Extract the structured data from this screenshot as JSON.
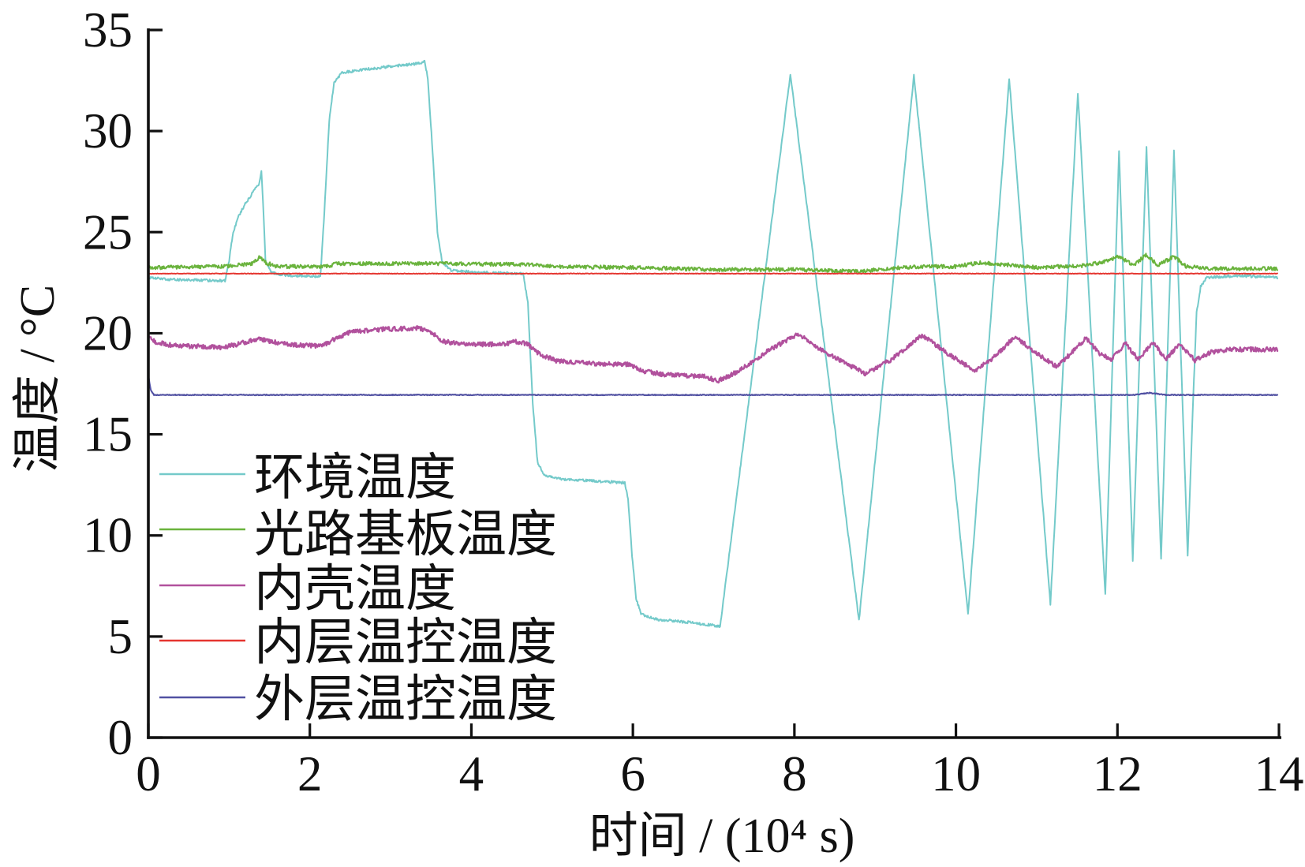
{
  "chart_data": {
    "type": "line",
    "xlabel": "时间 / (10⁴ s)",
    "ylabel": "温度 / °C",
    "xlim": [
      0,
      14
    ],
    "ylim": [
      0,
      35
    ],
    "xticks": [
      0,
      2,
      4,
      6,
      8,
      10,
      12,
      14
    ],
    "yticks": [
      0,
      5,
      10,
      15,
      20,
      25,
      30,
      35
    ],
    "grid": false,
    "legend": "lower-left",
    "series": [
      {
        "name": "环境温度",
        "color": "#74caca",
        "points": [
          [
            0,
            22.75
          ],
          [
            0.3,
            22.65
          ],
          [
            0.95,
            22.6
          ],
          [
            1.0,
            23.6
          ],
          [
            1.05,
            25.0
          ],
          [
            1.12,
            25.8
          ],
          [
            1.2,
            26.4
          ],
          [
            1.3,
            27.0
          ],
          [
            1.37,
            27.4
          ],
          [
            1.4,
            28.0
          ],
          [
            1.42,
            26.5
          ],
          [
            1.45,
            23.6
          ],
          [
            1.52,
            23.0
          ],
          [
            1.7,
            22.85
          ],
          [
            2.13,
            22.8
          ],
          [
            2.18,
            26.0
          ],
          [
            2.24,
            30.5
          ],
          [
            2.3,
            32.4
          ],
          [
            2.4,
            32.9
          ],
          [
            2.6,
            33.0
          ],
          [
            3.0,
            33.2
          ],
          [
            3.38,
            33.35
          ],
          [
            3.42,
            33.5
          ],
          [
            3.46,
            32.6
          ],
          [
            3.52,
            29.0
          ],
          [
            3.58,
            25.0
          ],
          [
            3.64,
            23.5
          ],
          [
            3.75,
            23.1
          ],
          [
            4.2,
            23.0
          ],
          [
            4.64,
            22.95
          ],
          [
            4.7,
            21.5
          ],
          [
            4.76,
            16.5
          ],
          [
            4.82,
            13.6
          ],
          [
            4.9,
            13.0
          ],
          [
            5.1,
            12.8
          ],
          [
            5.5,
            12.7
          ],
          [
            5.9,
            12.6
          ],
          [
            5.94,
            11.8
          ],
          [
            5.99,
            9.0
          ],
          [
            6.04,
            6.9
          ],
          [
            6.1,
            6.1
          ],
          [
            6.3,
            5.85
          ],
          [
            6.7,
            5.7
          ],
          [
            7.0,
            5.55
          ],
          [
            7.08,
            5.5
          ],
          [
            7.95,
            32.8
          ],
          [
            8.8,
            5.8
          ],
          [
            9.48,
            32.75
          ],
          [
            10.15,
            6.1
          ],
          [
            10.66,
            32.6
          ],
          [
            11.17,
            6.6
          ],
          [
            11.51,
            31.9
          ],
          [
            11.85,
            7.1
          ],
          [
            12.02,
            29.0
          ],
          [
            12.19,
            8.8
          ],
          [
            12.36,
            29.2
          ],
          [
            12.54,
            8.8
          ],
          [
            12.7,
            29.0
          ],
          [
            12.87,
            9.0
          ],
          [
            12.94,
            17.0
          ],
          [
            12.98,
            21.0
          ],
          [
            13.03,
            22.3
          ],
          [
            13.1,
            22.75
          ],
          [
            13.5,
            22.85
          ],
          [
            13.98,
            22.75
          ]
        ]
      },
      {
        "name": "光路基板温度",
        "color": "#6ab33d",
        "points": [
          [
            0,
            23.25
          ],
          [
            0.9,
            23.3
          ],
          [
            1.3,
            23.45
          ],
          [
            1.38,
            23.8
          ],
          [
            1.45,
            23.5
          ],
          [
            1.6,
            23.3
          ],
          [
            2.2,
            23.3
          ],
          [
            2.35,
            23.45
          ],
          [
            3.5,
            23.45
          ],
          [
            4.7,
            23.4
          ],
          [
            5.0,
            23.3
          ],
          [
            6.0,
            23.25
          ],
          [
            7.0,
            23.15
          ],
          [
            8.0,
            23.15
          ],
          [
            8.8,
            23.05
          ],
          [
            9.3,
            23.25
          ],
          [
            9.6,
            23.3
          ],
          [
            10.0,
            23.3
          ],
          [
            10.3,
            23.5
          ],
          [
            10.6,
            23.4
          ],
          [
            11.0,
            23.25
          ],
          [
            11.6,
            23.35
          ],
          [
            11.85,
            23.55
          ],
          [
            12.02,
            23.8
          ],
          [
            12.2,
            23.35
          ],
          [
            12.36,
            23.9
          ],
          [
            12.5,
            23.35
          ],
          [
            12.7,
            23.8
          ],
          [
            12.85,
            23.3
          ],
          [
            13.2,
            23.2
          ],
          [
            13.98,
            23.2
          ]
        ]
      },
      {
        "name": "内壳温度",
        "color": "#b1519d",
        "points": [
          [
            0,
            19.85
          ],
          [
            0.1,
            19.55
          ],
          [
            0.3,
            19.4
          ],
          [
            0.9,
            19.3
          ],
          [
            1.1,
            19.45
          ],
          [
            1.37,
            19.75
          ],
          [
            1.5,
            19.6
          ],
          [
            1.75,
            19.45
          ],
          [
            2.15,
            19.35
          ],
          [
            2.3,
            19.7
          ],
          [
            2.5,
            20.05
          ],
          [
            2.9,
            20.2
          ],
          [
            3.35,
            20.25
          ],
          [
            3.5,
            20.05
          ],
          [
            3.65,
            19.6
          ],
          [
            3.9,
            19.45
          ],
          [
            4.4,
            19.45
          ],
          [
            4.55,
            19.6
          ],
          [
            4.7,
            19.45
          ],
          [
            4.85,
            18.95
          ],
          [
            5.05,
            18.65
          ],
          [
            5.5,
            18.5
          ],
          [
            5.95,
            18.45
          ],
          [
            6.1,
            18.15
          ],
          [
            6.4,
            17.95
          ],
          [
            6.9,
            17.85
          ],
          [
            7.05,
            17.65
          ],
          [
            7.3,
            18.1
          ],
          [
            7.7,
            19.2
          ],
          [
            8.05,
            19.95
          ],
          [
            8.4,
            19.0
          ],
          [
            8.88,
            18.0
          ],
          [
            9.2,
            18.7
          ],
          [
            9.58,
            19.9
          ],
          [
            9.9,
            19.0
          ],
          [
            10.24,
            18.15
          ],
          [
            10.5,
            18.9
          ],
          [
            10.73,
            19.85
          ],
          [
            11.0,
            19.0
          ],
          [
            11.25,
            18.35
          ],
          [
            11.45,
            19.1
          ],
          [
            11.61,
            19.75
          ],
          [
            11.78,
            19.0
          ],
          [
            11.92,
            18.7
          ],
          [
            12.1,
            19.5
          ],
          [
            12.26,
            18.7
          ],
          [
            12.44,
            19.55
          ],
          [
            12.6,
            18.7
          ],
          [
            12.77,
            19.5
          ],
          [
            12.96,
            18.65
          ],
          [
            13.15,
            19.05
          ],
          [
            13.4,
            19.2
          ],
          [
            13.98,
            19.2
          ]
        ]
      },
      {
        "name": "内层温控温度",
        "color": "#e5352f",
        "points": [
          [
            0,
            22.95
          ],
          [
            13.98,
            22.95
          ]
        ]
      },
      {
        "name": "外层温控温度",
        "color": "#5151a2",
        "points": [
          [
            0,
            17.9
          ],
          [
            0.03,
            17.2
          ],
          [
            0.07,
            16.95
          ],
          [
            12.2,
            16.95
          ],
          [
            12.4,
            17.05
          ],
          [
            12.6,
            16.95
          ],
          [
            13.98,
            16.95
          ]
        ]
      }
    ]
  }
}
